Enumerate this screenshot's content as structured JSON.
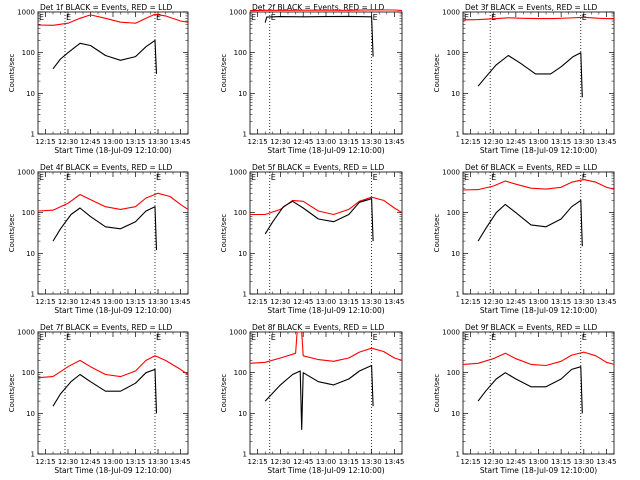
{
  "colors": {
    "events": "#000000",
    "lld": "#ff0000",
    "marker": "#000000",
    "background": "#ffffff"
  },
  "common": {
    "ylabel": "Counts/sec",
    "xlabel": "Start Time (18-Jul-09 12:10:00)",
    "xticks": [
      "12:15",
      "12:30",
      "12:45",
      "13:00",
      "13:15",
      "13:30",
      "13:45"
    ],
    "yticks": [
      "1",
      "10",
      "100",
      "1000"
    ],
    "marker_letter": "E"
  },
  "chart_data": [
    {
      "type": "line",
      "title": "Det 1f BLACK = Events, RED = LLD",
      "xlabel": "Start Time (18-Jul-09 12:10:00)",
      "ylabel": "Counts/sec",
      "xlim": [
        "12:10",
        "13:50"
      ],
      "ylim": [
        1,
        1000
      ],
      "yscale": "log",
      "markers": [
        "12:28",
        "13:28"
      ],
      "series": [
        {
          "name": "LLD",
          "x": [
            "12:10",
            "12:20",
            "12:30",
            "12:38",
            "12:45",
            "12:55",
            "13:05",
            "13:15",
            "13:22",
            "13:28",
            "13:35",
            "13:45",
            "13:50"
          ],
          "values": [
            480,
            470,
            530,
            700,
            850,
            700,
            560,
            530,
            700,
            880,
            800,
            600,
            560
          ]
        },
        {
          "name": "Events",
          "x": [
            "12:20",
            "12:25",
            "12:30",
            "12:38",
            "12:45",
            "12:55",
            "13:05",
            "13:15",
            "13:22",
            "13:28",
            "13:29"
          ],
          "values": [
            40,
            70,
            100,
            170,
            150,
            85,
            65,
            80,
            140,
            200,
            30
          ]
        }
      ]
    },
    {
      "type": "line",
      "title": "Det 2f BLACK = Events, RED = LLD",
      "xlabel": "Start Time (18-Jul-09 12:10:00)",
      "ylabel": "Counts/sec",
      "xlim": [
        "12:10",
        "13:50"
      ],
      "ylim": [
        1,
        1000
      ],
      "yscale": "log",
      "markers": [
        "12:23",
        "13:30"
      ],
      "series": [
        {
          "name": "LLD",
          "x": [
            "12:10",
            "12:20",
            "12:30",
            "12:45",
            "13:00",
            "13:15",
            "13:30",
            "13:45",
            "13:50"
          ],
          "values": [
            1080,
            1100,
            1100,
            1110,
            1110,
            1100,
            1130,
            1120,
            1080
          ]
        },
        {
          "name": "Events",
          "x": [
            "12:20",
            "12:21",
            "12:30",
            "12:45",
            "13:00",
            "13:15",
            "13:30",
            "13:31"
          ],
          "values": [
            550,
            750,
            770,
            760,
            770,
            780,
            760,
            80
          ]
        }
      ]
    },
    {
      "type": "line",
      "title": "Det 3f BLACK = Events, RED = LLD",
      "xlabel": "Start Time (18-Jul-09 12:10:00)",
      "ylabel": "Counts/sec",
      "xlim": [
        "12:10",
        "13:50"
      ],
      "ylim": [
        1,
        1000
      ],
      "yscale": "log",
      "markers": [
        "12:28",
        "13:28"
      ],
      "series": [
        {
          "name": "LLD",
          "x": [
            "12:10",
            "12:20",
            "12:30",
            "12:40",
            "12:50",
            "13:00",
            "13:10",
            "13:20",
            "13:30",
            "13:40",
            "13:50"
          ],
          "values": [
            640,
            650,
            680,
            720,
            700,
            690,
            690,
            710,
            740,
            700,
            680
          ]
        },
        {
          "name": "Events",
          "x": [
            "12:20",
            "12:25",
            "12:32",
            "12:40",
            "12:48",
            "12:58",
            "13:08",
            "13:15",
            "13:23",
            "13:28",
            "13:29"
          ],
          "values": [
            15,
            25,
            50,
            85,
            55,
            30,
            30,
            45,
            80,
            100,
            8
          ]
        }
      ]
    },
    {
      "type": "line",
      "title": "Det 4f BLACK = Events, RED = LLD",
      "xlabel": "Start Time (18-Jul-09 12:10:00)",
      "ylabel": "Counts/sec",
      "xlim": [
        "12:10",
        "13:50"
      ],
      "ylim": [
        1,
        1000
      ],
      "yscale": "log",
      "markers": [
        "12:28",
        "13:28"
      ],
      "series": [
        {
          "name": "LLD",
          "x": [
            "12:10",
            "12:20",
            "12:30",
            "12:38",
            "12:45",
            "12:55",
            "13:05",
            "13:15",
            "13:22",
            "13:30",
            "13:38",
            "13:45",
            "13:50"
          ],
          "values": [
            110,
            115,
            170,
            280,
            210,
            140,
            120,
            140,
            230,
            300,
            250,
            160,
            120
          ]
        },
        {
          "name": "Events",
          "x": [
            "12:20",
            "12:25",
            "12:32",
            "12:38",
            "12:45",
            "12:55",
            "13:05",
            "13:15",
            "13:22",
            "13:28",
            "13:29"
          ],
          "values": [
            20,
            40,
            90,
            130,
            80,
            45,
            40,
            60,
            110,
            140,
            12
          ]
        }
      ]
    },
    {
      "type": "line",
      "title": "Det 5f BLACK = Events, RED = LLD",
      "xlabel": "Start Time (18-Jul-09 12:10:00)",
      "ylabel": "Counts/sec",
      "xlim": [
        "12:10",
        "13:50"
      ],
      "ylim": [
        1,
        1000
      ],
      "yscale": "log",
      "markers": [
        "12:23",
        "13:30"
      ],
      "series": [
        {
          "name": "LLD",
          "x": [
            "12:10",
            "12:20",
            "12:30",
            "12:38",
            "12:45",
            "12:55",
            "13:05",
            "13:15",
            "13:22",
            "13:30",
            "13:38",
            "13:45",
            "13:50"
          ],
          "values": [
            90,
            90,
            120,
            200,
            190,
            110,
            90,
            120,
            190,
            240,
            200,
            130,
            100
          ]
        },
        {
          "name": "Events",
          "x": [
            "12:20",
            "12:25",
            "12:32",
            "12:38",
            "12:45",
            "12:55",
            "13:05",
            "13:15",
            "13:22",
            "13:30",
            "13:31"
          ],
          "values": [
            30,
            60,
            140,
            190,
            130,
            70,
            60,
            90,
            180,
            220,
            20
          ]
        }
      ]
    },
    {
      "type": "line",
      "title": "Det 6f BLACK = Events, RED = LLD",
      "xlabel": "Start Time (18-Jul-09 12:10:00)",
      "ylabel": "Counts/sec",
      "xlim": [
        "12:10",
        "13:50"
      ],
      "ylim": [
        1,
        1000
      ],
      "yscale": "log",
      "markers": [
        "12:28",
        "13:28"
      ],
      "series": [
        {
          "name": "LLD",
          "x": [
            "12:10",
            "12:20",
            "12:30",
            "12:38",
            "12:45",
            "12:55",
            "13:05",
            "13:15",
            "13:22",
            "13:30",
            "13:38",
            "13:45",
            "13:50"
          ],
          "values": [
            360,
            370,
            450,
            600,
            500,
            400,
            380,
            420,
            560,
            650,
            560,
            420,
            380
          ]
        },
        {
          "name": "Events",
          "x": [
            "12:20",
            "12:25",
            "12:32",
            "12:38",
            "12:45",
            "12:55",
            "13:05",
            "13:15",
            "13:22",
            "13:28",
            "13:29"
          ],
          "values": [
            20,
            40,
            100,
            160,
            100,
            50,
            45,
            70,
            140,
            200,
            15
          ]
        }
      ]
    },
    {
      "type": "line",
      "title": "Det 7f BLACK = Events, RED = LLD",
      "xlabel": "Start Time (18-Jul-09 12:10:00)",
      "ylabel": "Counts/sec",
      "xlim": [
        "12:10",
        "13:50"
      ],
      "ylim": [
        1,
        1000
      ],
      "yscale": "log",
      "markers": [
        "12:28",
        "13:28"
      ],
      "series": [
        {
          "name": "LLD",
          "x": [
            "12:10",
            "12:20",
            "12:30",
            "12:38",
            "12:45",
            "12:55",
            "13:05",
            "13:15",
            "13:22",
            "13:28",
            "13:35",
            "13:45",
            "13:50"
          ],
          "values": [
            75,
            80,
            140,
            200,
            140,
            90,
            80,
            110,
            200,
            260,
            200,
            120,
            90
          ]
        },
        {
          "name": "Events",
          "x": [
            "12:20",
            "12:25",
            "12:32",
            "12:38",
            "12:45",
            "12:55",
            "13:05",
            "13:15",
            "13:22",
            "13:28",
            "13:29"
          ],
          "values": [
            15,
            30,
            60,
            90,
            60,
            35,
            35,
            55,
            100,
            120,
            10
          ]
        }
      ]
    },
    {
      "type": "line",
      "title": "Det 8f BLACK = Events, RED = LLD",
      "xlabel": "Start Time (18-Jul-09 12:10:00)",
      "ylabel": "Counts/sec",
      "xlim": [
        "12:10",
        "13:50"
      ],
      "ylim": [
        1,
        1000
      ],
      "yscale": "log",
      "markers": [
        "12:23",
        "13:30"
      ],
      "series": [
        {
          "name": "LLD",
          "x": [
            "12:10",
            "12:20",
            "12:30",
            "12:40",
            "12:41",
            "12:44",
            "12:45",
            "12:55",
            "13:05",
            "13:15",
            "13:22",
            "13:30",
            "13:38",
            "13:45",
            "13:50"
          ],
          "values": [
            170,
            180,
            230,
            300,
            1000,
            1000,
            260,
            210,
            190,
            230,
            320,
            400,
            330,
            230,
            200
          ]
        },
        {
          "name": "Events",
          "x": [
            "12:20",
            "12:30",
            "12:38",
            "12:43",
            "12:44",
            "12:45",
            "12:55",
            "13:05",
            "13:15",
            "13:22",
            "13:30",
            "13:31"
          ],
          "values": [
            20,
            50,
            90,
            110,
            4,
            100,
            60,
            50,
            70,
            110,
            150,
            15
          ]
        }
      ]
    },
    {
      "type": "line",
      "title": "Det 9f BLACK = Events, RED = LLD",
      "xlabel": "Start Time (18-Jul-09 12:10:00)",
      "ylabel": "Counts/sec",
      "xlim": [
        "12:10",
        "13:50"
      ],
      "ylim": [
        1,
        1000
      ],
      "yscale": "log",
      "markers": [
        "12:28",
        "13:28"
      ],
      "series": [
        {
          "name": "LLD",
          "x": [
            "12:10",
            "12:20",
            "12:30",
            "12:38",
            "12:45",
            "12:55",
            "13:05",
            "13:15",
            "13:22",
            "13:30",
            "13:38",
            "13:45",
            "13:50"
          ],
          "values": [
            160,
            170,
            220,
            300,
            220,
            160,
            150,
            190,
            270,
            320,
            260,
            180,
            160
          ]
        },
        {
          "name": "Events",
          "x": [
            "12:20",
            "12:25",
            "12:32",
            "12:38",
            "12:45",
            "12:55",
            "13:05",
            "13:15",
            "13:22",
            "13:28",
            "13:29"
          ],
          "values": [
            20,
            35,
            70,
            100,
            70,
            45,
            45,
            70,
            120,
            140,
            10
          ]
        }
      ]
    }
  ]
}
